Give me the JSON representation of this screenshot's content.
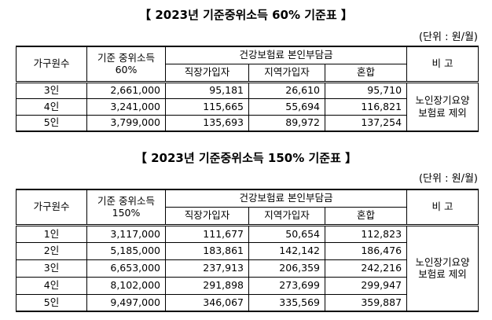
{
  "tables": [
    {
      "title": "【 2023년 기준중위소득 60% 기준표 】",
      "unit": "(단위 : 원/월)",
      "header": {
        "household": "가구원수",
        "income": "기준 중위소득\n60%",
        "premium": "건강보험료 본인부담금",
        "premium_cols": [
          "직장가입자",
          "지역가입자",
          "혼합"
        ],
        "note": "비 고"
      },
      "rows": [
        [
          "3인",
          "2,661,000",
          "95,181",
          "26,610",
          "95,710"
        ],
        [
          "4인",
          "3,241,000",
          "115,665",
          "55,694",
          "116,821"
        ],
        [
          "5인",
          "3,799,000",
          "135,693",
          "89,972",
          "137,254"
        ]
      ],
      "note": "노인장기요양\n보험료 제외"
    },
    {
      "title": "【 2023년 기준중위소득 150% 기준표 】",
      "unit": "(단위 : 원/월)",
      "header": {
        "household": "가구원수",
        "income": "기준 중위소득\n150%",
        "premium": "건강보험료 본인부담금",
        "premium_cols": [
          "직장가입자",
          "지역가입자",
          "혼합"
        ],
        "note": "비 고"
      },
      "rows": [
        [
          "1인",
          "3,117,000",
          "111,677",
          "50,654",
          "112,823"
        ],
        [
          "2인",
          "5,185,000",
          "183,861",
          "142,142",
          "186,476"
        ],
        [
          "3인",
          "6,653,000",
          "237,913",
          "206,359",
          "242,216"
        ],
        [
          "4인",
          "8,102,000",
          "291,898",
          "273,699",
          "299,947"
        ],
        [
          "5인",
          "9,497,000",
          "346,067",
          "335,569",
          "359,887"
        ]
      ],
      "note": "노인장기요양\n보험료 제외"
    }
  ]
}
